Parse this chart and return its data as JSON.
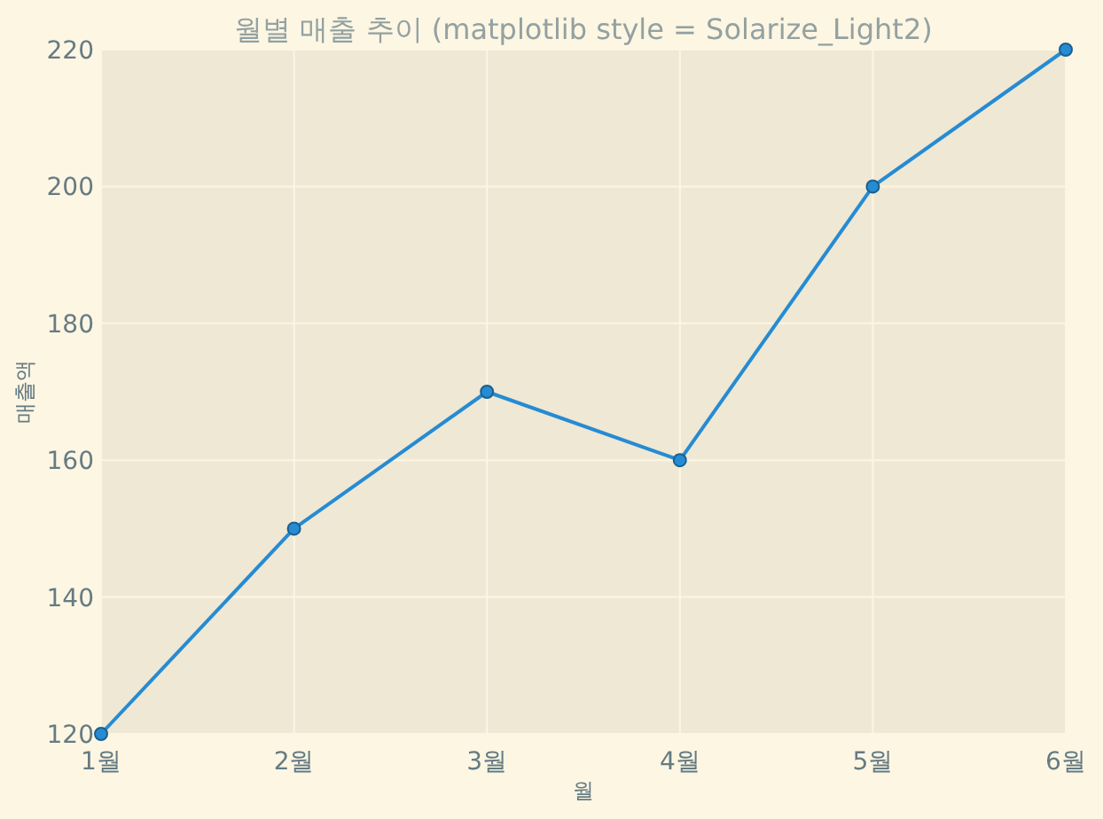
{
  "chart_data": {
    "type": "line",
    "title": "월별 매출 추이 (matplotlib style = Solarize_Light2)",
    "xlabel": "월",
    "ylabel": "매출액",
    "categories": [
      "1월",
      "2월",
      "3월",
      "4월",
      "5월",
      "6월"
    ],
    "values": [
      120,
      150,
      170,
      160,
      200,
      220
    ],
    "color": "#268bd2",
    "ylim": [
      120,
      220
    ],
    "yticks": [
      120,
      140,
      160,
      180,
      200,
      220
    ],
    "grid": true,
    "marker": "circle",
    "line_style": "solid"
  }
}
